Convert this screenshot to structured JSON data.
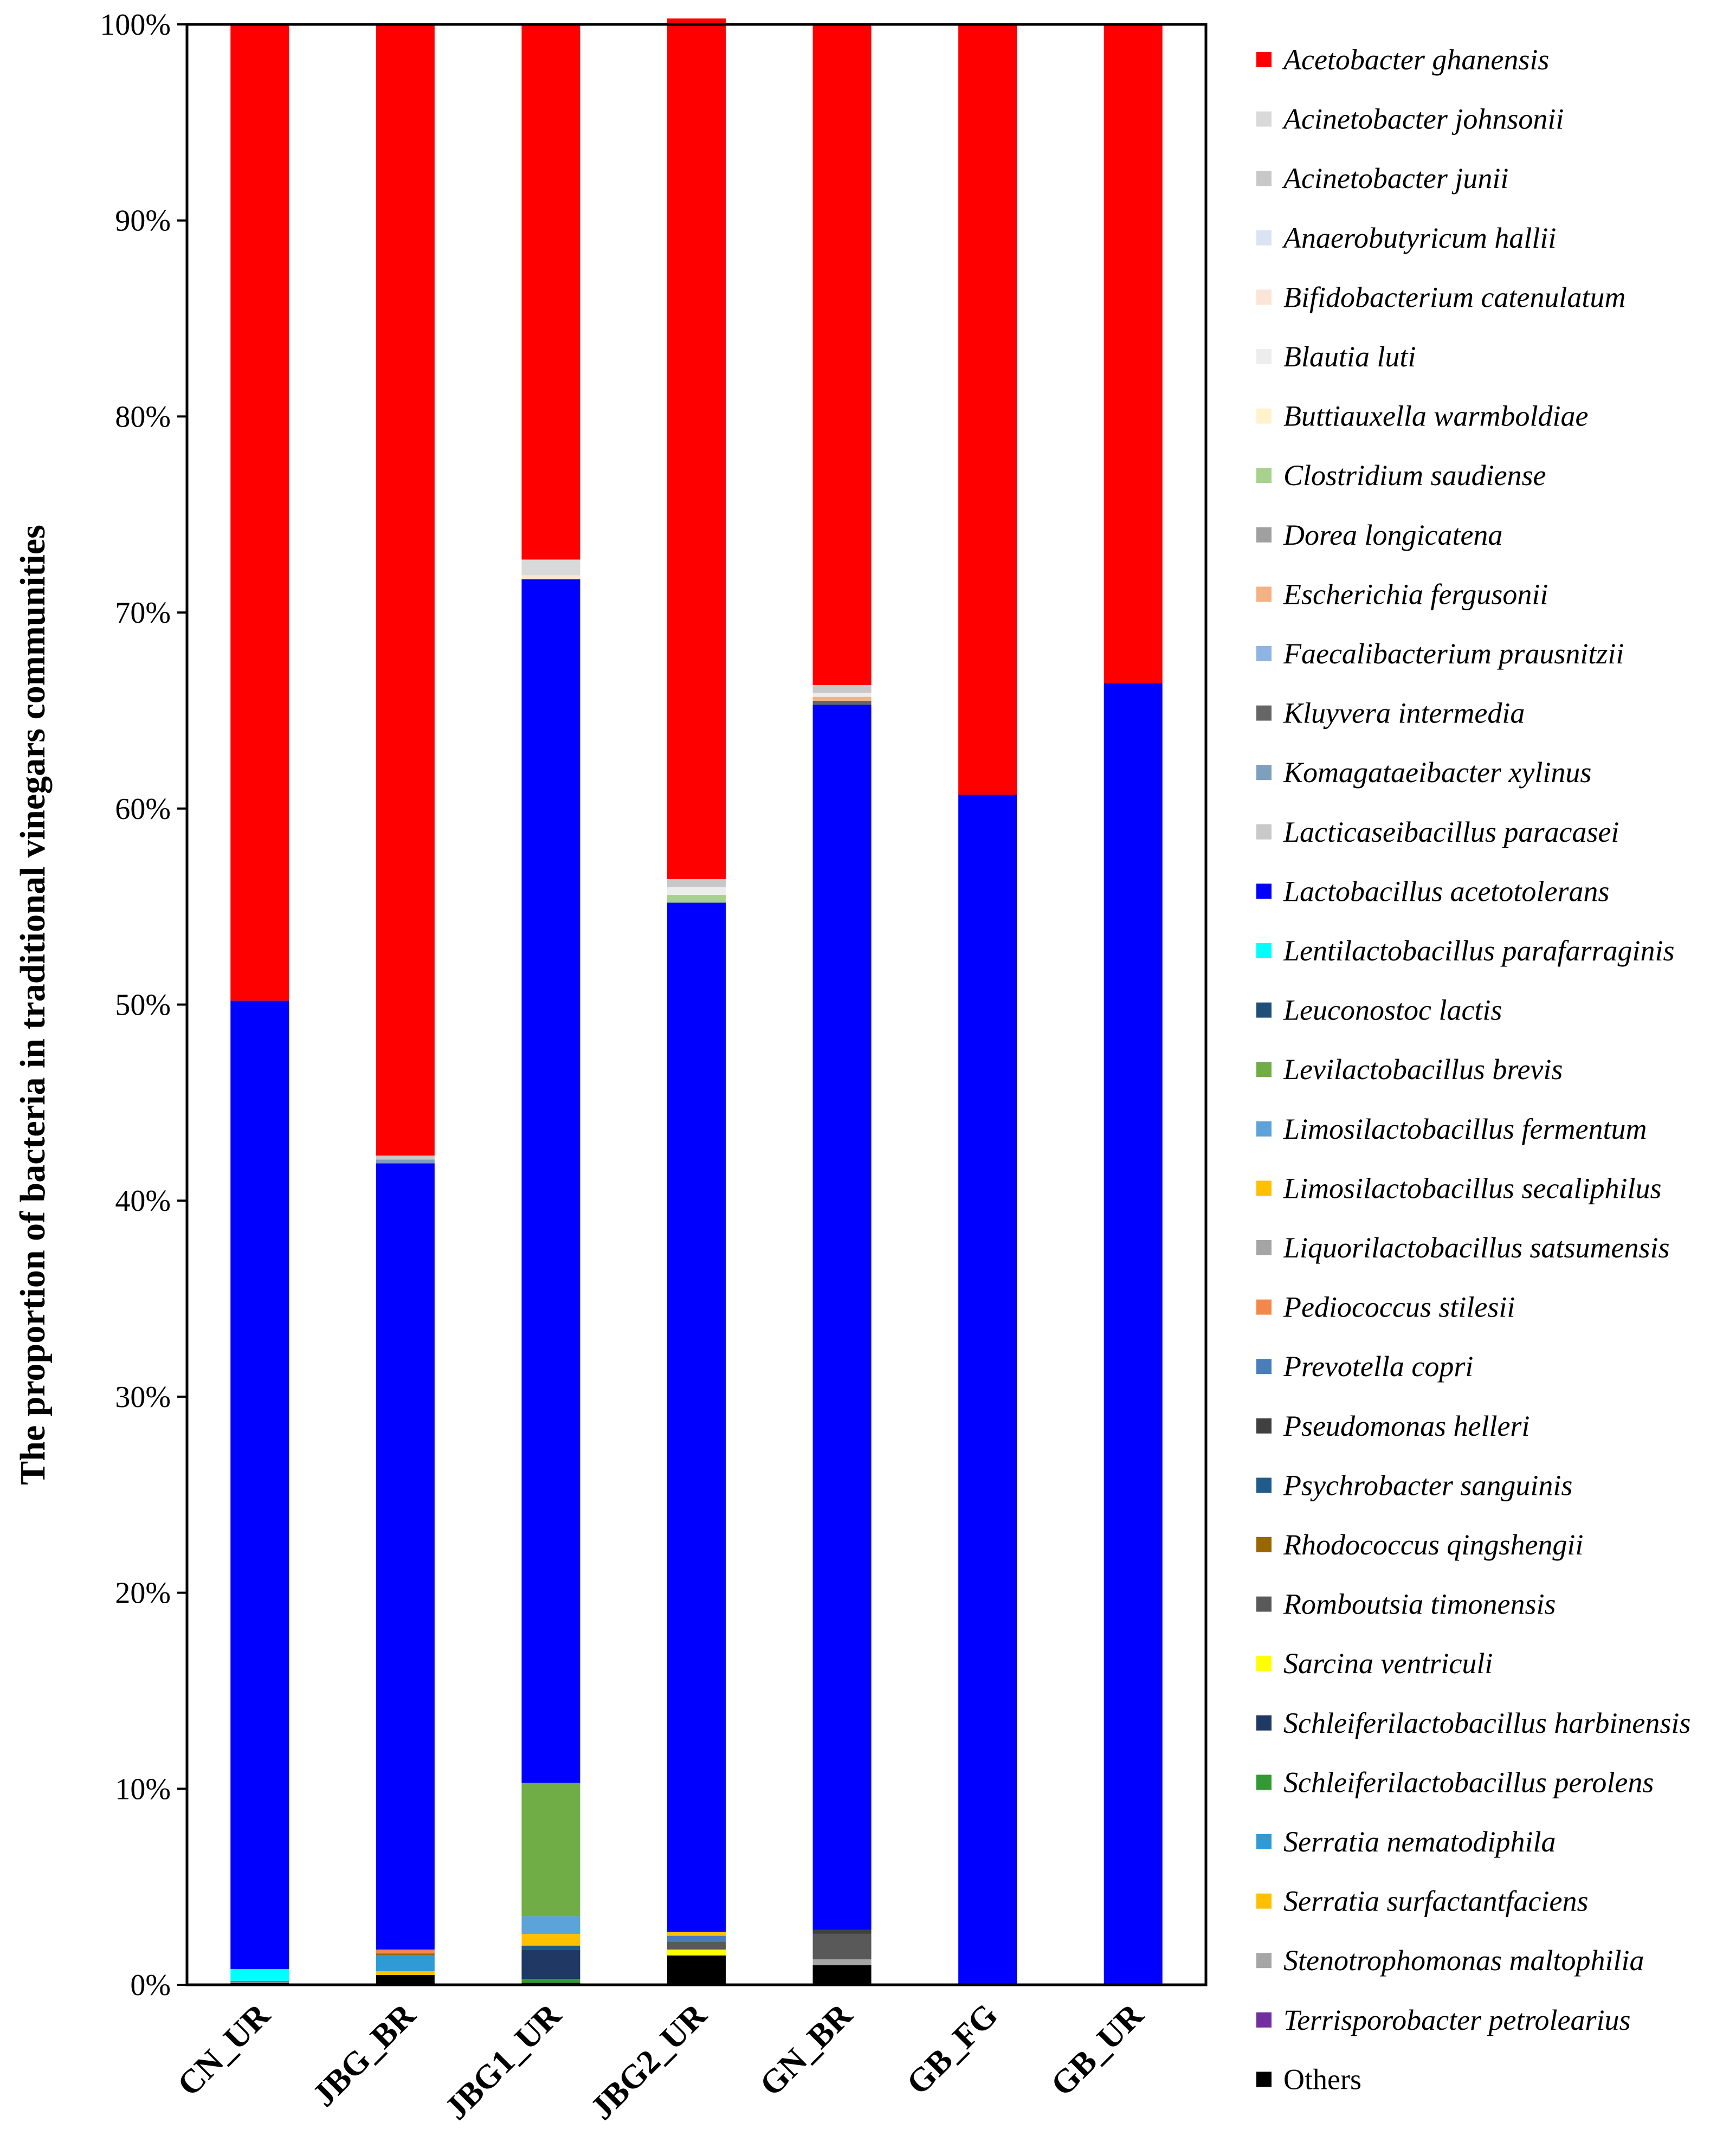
{
  "chart_data": {
    "type": "bar",
    "stacked": true,
    "title": "",
    "xlabel": "",
    "ylabel": "The proportion of bacteria in traditional vinegars communities",
    "ylim": [
      0,
      100
    ],
    "yticks": [
      "0%",
      "10%",
      "20%",
      "30%",
      "40%",
      "50%",
      "60%",
      "70%",
      "80%",
      "90%",
      "100%"
    ],
    "legend_position": "right",
    "categories": [
      "CN_UR",
      "JBG_BR",
      "JBG1_UR",
      "JBG2_UR",
      "GN_BR",
      "GB_FG",
      "GB_UR"
    ],
    "series": [
      {
        "name": "Others",
        "color": "#000000",
        "values": [
          0.1,
          0.5,
          0.1,
          1.5,
          1.0,
          0,
          0
        ]
      },
      {
        "name": "Terrisporobacter petrolearius",
        "color": "#7030a0",
        "values": [
          0,
          0,
          0,
          0,
          0,
          0,
          0
        ]
      },
      {
        "name": "Stenotrophomonas maltophilia",
        "color": "#a6a6a6",
        "values": [
          0.05,
          0,
          0,
          0,
          0.3,
          0,
          0
        ]
      },
      {
        "name": "Serratia surfactantfaciens",
        "color": "#ffc000",
        "values": [
          0,
          0.2,
          0,
          0,
          0,
          0,
          0
        ]
      },
      {
        "name": "Serratia nematodiphila",
        "color": "#2e9bd6",
        "values": [
          0,
          0.8,
          0,
          0,
          0,
          0,
          0
        ]
      },
      {
        "name": "Schleiferilactobacillus perolens",
        "color": "#339933",
        "values": [
          0.05,
          0,
          0.2,
          0,
          0,
          0,
          0
        ]
      },
      {
        "name": "Schleiferilactobacillus harbinensis",
        "color": "#1f3864",
        "values": [
          0,
          0,
          1.5,
          0,
          0,
          0,
          0
        ]
      },
      {
        "name": "Sarcina ventriculi",
        "color": "#ffff00",
        "values": [
          0,
          0,
          0,
          0.3,
          0,
          0,
          0
        ]
      },
      {
        "name": "Romboutsia timonensis",
        "color": "#595959",
        "values": [
          0,
          0,
          0,
          0.4,
          1.3,
          0,
          0
        ]
      },
      {
        "name": "Rhodococcus qingshengii",
        "color": "#996600",
        "values": [
          0,
          0.1,
          0,
          0,
          0,
          0,
          0
        ]
      },
      {
        "name": "Psychrobacter sanguinis",
        "color": "#1f5c8b",
        "values": [
          0,
          0,
          0.2,
          0,
          0,
          0,
          0
        ]
      },
      {
        "name": "Pseudomonas helleri",
        "color": "#404040",
        "values": [
          0,
          0,
          0,
          0,
          0.2,
          0,
          0
        ]
      },
      {
        "name": "Prevotella copri",
        "color": "#4a7ebb",
        "values": [
          0,
          0,
          0,
          0.3,
          0,
          0,
          0
        ]
      },
      {
        "name": "Pediococcus stilesii",
        "color": "#f4884a",
        "values": [
          0,
          0.2,
          0,
          0,
          0,
          0,
          0
        ]
      },
      {
        "name": "Liquorilactobacillus satsumensis",
        "color": "#a5a5a5",
        "values": [
          0,
          0,
          0,
          0,
          0,
          0,
          0
        ]
      },
      {
        "name": "Limosilactobacillus secaliphilus",
        "color": "#ffc000",
        "values": [
          0,
          0,
          0.6,
          0.2,
          0,
          0,
          0
        ]
      },
      {
        "name": "Limosilactobacillus fermentum",
        "color": "#5ba3d9",
        "values": [
          0,
          0,
          0.9,
          0,
          0,
          0,
          0
        ]
      },
      {
        "name": "Levilactobacillus brevis",
        "color": "#70ad47",
        "values": [
          0,
          0,
          6.8,
          0,
          0,
          0,
          0
        ]
      },
      {
        "name": "Leuconostoc lactis",
        "color": "#1f4e79",
        "values": [
          0,
          0,
          0,
          0,
          0,
          0,
          0
        ]
      },
      {
        "name": "Lentilactobacillus parafarraginis",
        "color": "#00ffff",
        "values": [
          0.6,
          0,
          0,
          0,
          0,
          0,
          0
        ]
      },
      {
        "name": "Lactobacillus acetotolerans",
        "color": "#0000ff",
        "values": [
          49.4,
          40.1,
          61.4,
          52.5,
          62.5,
          60.7,
          66.4
        ]
      },
      {
        "name": "Lacticaseibacillus paracasei",
        "color": "#c9c9c9",
        "values": [
          0,
          0,
          0,
          0,
          0,
          0,
          0
        ]
      },
      {
        "name": "Komagataeibacter xylinus",
        "color": "#7f9fbf",
        "values": [
          0,
          0.2,
          0,
          0,
          0,
          0,
          0
        ]
      },
      {
        "name": "Kluyvera intermedia",
        "color": "#666666",
        "values": [
          0,
          0,
          0,
          0,
          0.2,
          0,
          0
        ]
      },
      {
        "name": "Faecalibacterium prausnitzii",
        "color": "#8eb4e3",
        "values": [
          0,
          0,
          0,
          0,
          0,
          0,
          0
        ]
      },
      {
        "name": "Escherichia fergusonii",
        "color": "#f4b183",
        "values": [
          0,
          0,
          0,
          0,
          0.2,
          0,
          0
        ]
      },
      {
        "name": "Dorea longicatena",
        "color": "#a0a0a0",
        "values": [
          0,
          0,
          0,
          0,
          0,
          0,
          0
        ]
      },
      {
        "name": "Clostridium saudiense",
        "color": "#a9d18e",
        "values": [
          0,
          0,
          0,
          0.4,
          0,
          0,
          0
        ]
      },
      {
        "name": "Buttiauxella warmboldiae",
        "color": "#fff2cc",
        "values": [
          0,
          0,
          0,
          0,
          0,
          0,
          0
        ]
      },
      {
        "name": "Blautia luti",
        "color": "#ededed",
        "values": [
          0,
          0,
          0,
          0.4,
          0.2,
          0,
          0
        ]
      },
      {
        "name": "Bifidobacterium catenulatum",
        "color": "#fbe5d6",
        "values": [
          0,
          0,
          0.2,
          0,
          0,
          0,
          0
        ]
      },
      {
        "name": "Anaerobutyricum hallii",
        "color": "#dae3f3",
        "values": [
          0,
          0,
          0,
          0,
          0,
          0,
          0
        ]
      },
      {
        "name": "Acinetobacter junii",
        "color": "#c8c8c8",
        "values": [
          0,
          0.2,
          0,
          0.4,
          0.4,
          0,
          0
        ]
      },
      {
        "name": "Acinetobacter johnsonii",
        "color": "#d9d9d9",
        "values": [
          0,
          0,
          0.8,
          0,
          0,
          0,
          0
        ]
      },
      {
        "name": "Acetobacter ghanensis",
        "color": "#ff0000",
        "values": [
          49.8,
          57.7,
          27.3,
          43.9,
          33.7,
          39.3,
          33.6
        ]
      }
    ],
    "legend": [
      {
        "label": "Acetobacter ghanensis",
        "color": "#ff0000",
        "italic": true
      },
      {
        "label": "Acinetobacter johnsonii",
        "color": "#d9d9d9",
        "italic": true
      },
      {
        "label": "Acinetobacter junii",
        "color": "#c8c8c8",
        "italic": true
      },
      {
        "label": "Anaerobutyricum hallii",
        "color": "#dae3f3",
        "italic": true
      },
      {
        "label": "Bifidobacterium catenulatum",
        "color": "#fbe5d6",
        "italic": true
      },
      {
        "label": "Blautia luti",
        "color": "#ededed",
        "italic": true
      },
      {
        "label": "Buttiauxella warmboldiae",
        "color": "#fff2cc",
        "italic": true
      },
      {
        "label": "Clostridium saudiense",
        "color": "#a9d18e",
        "italic": true
      },
      {
        "label": "Dorea longicatena",
        "color": "#a0a0a0",
        "italic": true
      },
      {
        "label": "Escherichia fergusonii",
        "color": "#f4b183",
        "italic": true
      },
      {
        "label": "Faecalibacterium prausnitzii",
        "color": "#8eb4e3",
        "italic": true
      },
      {
        "label": "Kluyvera intermedia",
        "color": "#666666",
        "italic": true
      },
      {
        "label": "Komagataeibacter xylinus",
        "color": "#7f9fbf",
        "italic": true
      },
      {
        "label": "Lacticaseibacillus paracasei",
        "color": "#c9c9c9",
        "italic": true
      },
      {
        "label": "Lactobacillus acetotolerans",
        "color": "#0000ff",
        "italic": true
      },
      {
        "label": "Lentilactobacillus parafarraginis",
        "color": "#00ffff",
        "italic": true
      },
      {
        "label": "Leuconostoc lactis",
        "color": "#1f4e79",
        "italic": true
      },
      {
        "label": "Levilactobacillus brevis",
        "color": "#70ad47",
        "italic": true
      },
      {
        "label": "Limosilactobacillus fermentum",
        "color": "#5ba3d9",
        "italic": true
      },
      {
        "label": "Limosilactobacillus secaliphilus",
        "color": "#ffc000",
        "italic": true
      },
      {
        "label": "Liquorilactobacillus satsumensis",
        "color": "#a5a5a5",
        "italic": true
      },
      {
        "label": "Pediococcus stilesii",
        "color": "#f4884a",
        "italic": true
      },
      {
        "label": "Prevotella copri",
        "color": "#4a7ebb",
        "italic": true
      },
      {
        "label": "Pseudomonas helleri",
        "color": "#404040",
        "italic": true
      },
      {
        "label": "Psychrobacter sanguinis",
        "color": "#1f5c8b",
        "italic": true
      },
      {
        "label": "Rhodococcus qingshengii",
        "color": "#996600",
        "italic": true
      },
      {
        "label": "Romboutsia timonensis",
        "color": "#595959",
        "italic": true
      },
      {
        "label": "Sarcina ventriculi",
        "color": "#ffff00",
        "italic": true
      },
      {
        "label": "Schleiferilactobacillus harbinensis",
        "color": "#1f3864",
        "italic": true
      },
      {
        "label": "Schleiferilactobacillus perolens",
        "color": "#339933",
        "italic": true
      },
      {
        "label": "Serratia nematodiphila",
        "color": "#2e9bd6",
        "italic": true
      },
      {
        "label": "Serratia surfactantfaciens",
        "color": "#ffc000",
        "italic": true
      },
      {
        "label": "Stenotrophomonas maltophilia",
        "color": "#a6a6a6",
        "italic": true
      },
      {
        "label": "Terrisporobacter petrolearius",
        "color": "#7030a0",
        "italic": true
      },
      {
        "label": "Others",
        "color": "#000000",
        "italic": false
      }
    ]
  }
}
